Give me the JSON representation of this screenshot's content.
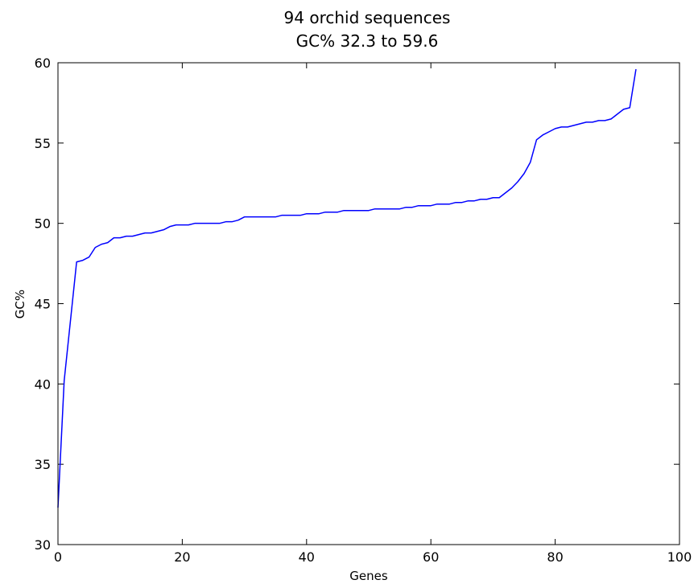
{
  "chart_data": {
    "type": "line",
    "title": "94 orchid sequences",
    "subtitle": "GC% 32.3 to 59.6",
    "xlabel": "Genes",
    "ylabel": "GC%",
    "xlim": [
      0,
      100
    ],
    "ylim": [
      30,
      60
    ],
    "xticks": [
      "0",
      "20",
      "40",
      "60",
      "80",
      "100"
    ],
    "yticks": [
      "30",
      "35",
      "40",
      "45",
      "50",
      "55",
      "60"
    ],
    "grid": false,
    "legend": "none",
    "line_color": "#0000ff",
    "series": [
      {
        "x": [
          0,
          1,
          2,
          3,
          4,
          5,
          6,
          7,
          8,
          9,
          10,
          11,
          12,
          13,
          14,
          15,
          16,
          17,
          18,
          19,
          20,
          21,
          22,
          23,
          24,
          25,
          26,
          27,
          28,
          29,
          30,
          31,
          32,
          33,
          34,
          35,
          36,
          37,
          38,
          39,
          40,
          41,
          42,
          43,
          44,
          45,
          46,
          47,
          48,
          49,
          50,
          51,
          52,
          53,
          54,
          55,
          56,
          57,
          58,
          59,
          60,
          61,
          62,
          63,
          64,
          65,
          66,
          67,
          68,
          69,
          70,
          71,
          72,
          73,
          74,
          75,
          76,
          77,
          78,
          79,
          80,
          81,
          82,
          83,
          84,
          85,
          86,
          87,
          88,
          89,
          90,
          91,
          92,
          93
        ],
        "y": [
          32.3,
          40.2,
          43.9,
          47.6,
          47.7,
          47.9,
          48.5,
          48.7,
          48.8,
          49.1,
          49.1,
          49.2,
          49.2,
          49.3,
          49.4,
          49.4,
          49.5,
          49.6,
          49.8,
          49.9,
          49.9,
          49.9,
          50.0,
          50.0,
          50.0,
          50.0,
          50.0,
          50.1,
          50.1,
          50.2,
          50.4,
          50.4,
          50.4,
          50.4,
          50.4,
          50.4,
          50.5,
          50.5,
          50.5,
          50.5,
          50.6,
          50.6,
          50.6,
          50.7,
          50.7,
          50.7,
          50.8,
          50.8,
          50.8,
          50.8,
          50.8,
          50.9,
          50.9,
          50.9,
          50.9,
          50.9,
          51.0,
          51.0,
          51.1,
          51.1,
          51.1,
          51.2,
          51.2,
          51.2,
          51.3,
          51.3,
          51.4,
          51.4,
          51.5,
          51.5,
          51.6,
          51.6,
          51.9,
          52.2,
          52.6,
          53.1,
          53.8,
          55.2,
          55.5,
          55.7,
          55.9,
          56.0,
          56.0,
          56.1,
          56.2,
          56.3,
          56.3,
          56.4,
          56.4,
          56.5,
          56.8,
          57.1,
          57.2,
          59.6
        ]
      }
    ]
  }
}
